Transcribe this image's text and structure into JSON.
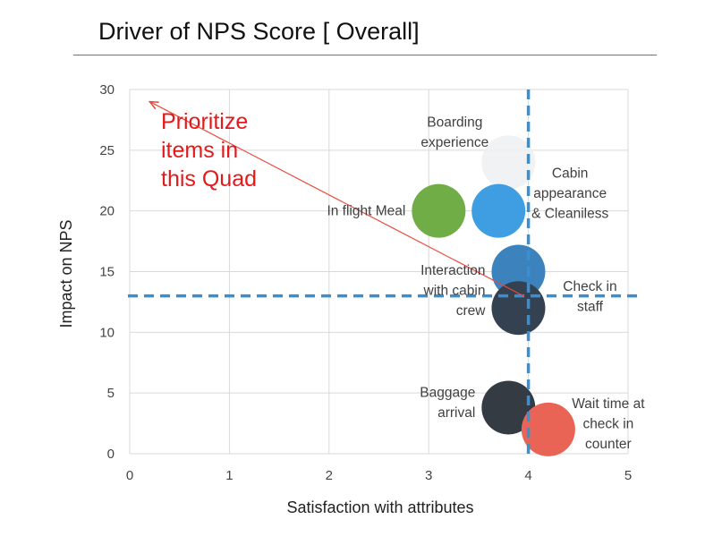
{
  "slide": {
    "title": "Driver of NPS Score [ Overall]"
  },
  "colors": {
    "threshold_lines": "#3a8fd1",
    "arrow": "#e84a3d",
    "callout_text": "#e31a1c",
    "title_rule": "#c0504d",
    "gridlines": "#d9d9d9"
  },
  "chart_data": {
    "type": "scatter",
    "variant": "bubble",
    "xlabel": "Satisfaction with attributes",
    "ylabel": "Impact on NPS",
    "xlim": [
      0,
      5
    ],
    "ylim": [
      0,
      30
    ],
    "x_ticks": [
      0,
      1,
      2,
      3,
      4,
      5
    ],
    "y_ticks": [
      0,
      5,
      10,
      15,
      20,
      25,
      30
    ],
    "grid": true,
    "legend": "none",
    "points": [
      {
        "label": "Boarding\nexperience",
        "x": 3.8,
        "y": 24,
        "color": "#eef1f2",
        "label_side": "above-left"
      },
      {
        "label": "In flight Meal",
        "x": 3.1,
        "y": 20,
        "color": "#70ad47",
        "label_side": "left"
      },
      {
        "label": "Cabin\nappearance\n& Cleaniless",
        "x": 3.7,
        "y": 20,
        "color": "#3f9ee2",
        "label_side": "right"
      },
      {
        "label": "",
        "x": 3.9,
        "y": 15,
        "color": "#3c82bd",
        "label_side": "none"
      },
      {
        "label": "Interaction\nwith cabin\ncrew",
        "x": 3.9,
        "y": 12,
        "color": "#344150",
        "label_side": "left"
      },
      {
        "label": "Check in\nstaff",
        "x": 3.9,
        "y": 12,
        "color": "#344150",
        "label_side": "right"
      },
      {
        "label": "Baggage\narrival",
        "x": 3.8,
        "y": 3.8,
        "color": "#353b43",
        "label_side": "left"
      },
      {
        "label": "Wait time at\ncheck in\ncounter",
        "x": 4.2,
        "y": 2,
        "color": "#ea6456",
        "label_side": "right"
      }
    ],
    "threshold_lines": {
      "x": 4,
      "y": 13
    },
    "annotations": [
      {
        "text": "Prioritize\nitems in\nthis Quad",
        "arrow_from": [
          3.95,
          13
        ],
        "arrow_to": [
          0.2,
          29
        ]
      }
    ]
  }
}
